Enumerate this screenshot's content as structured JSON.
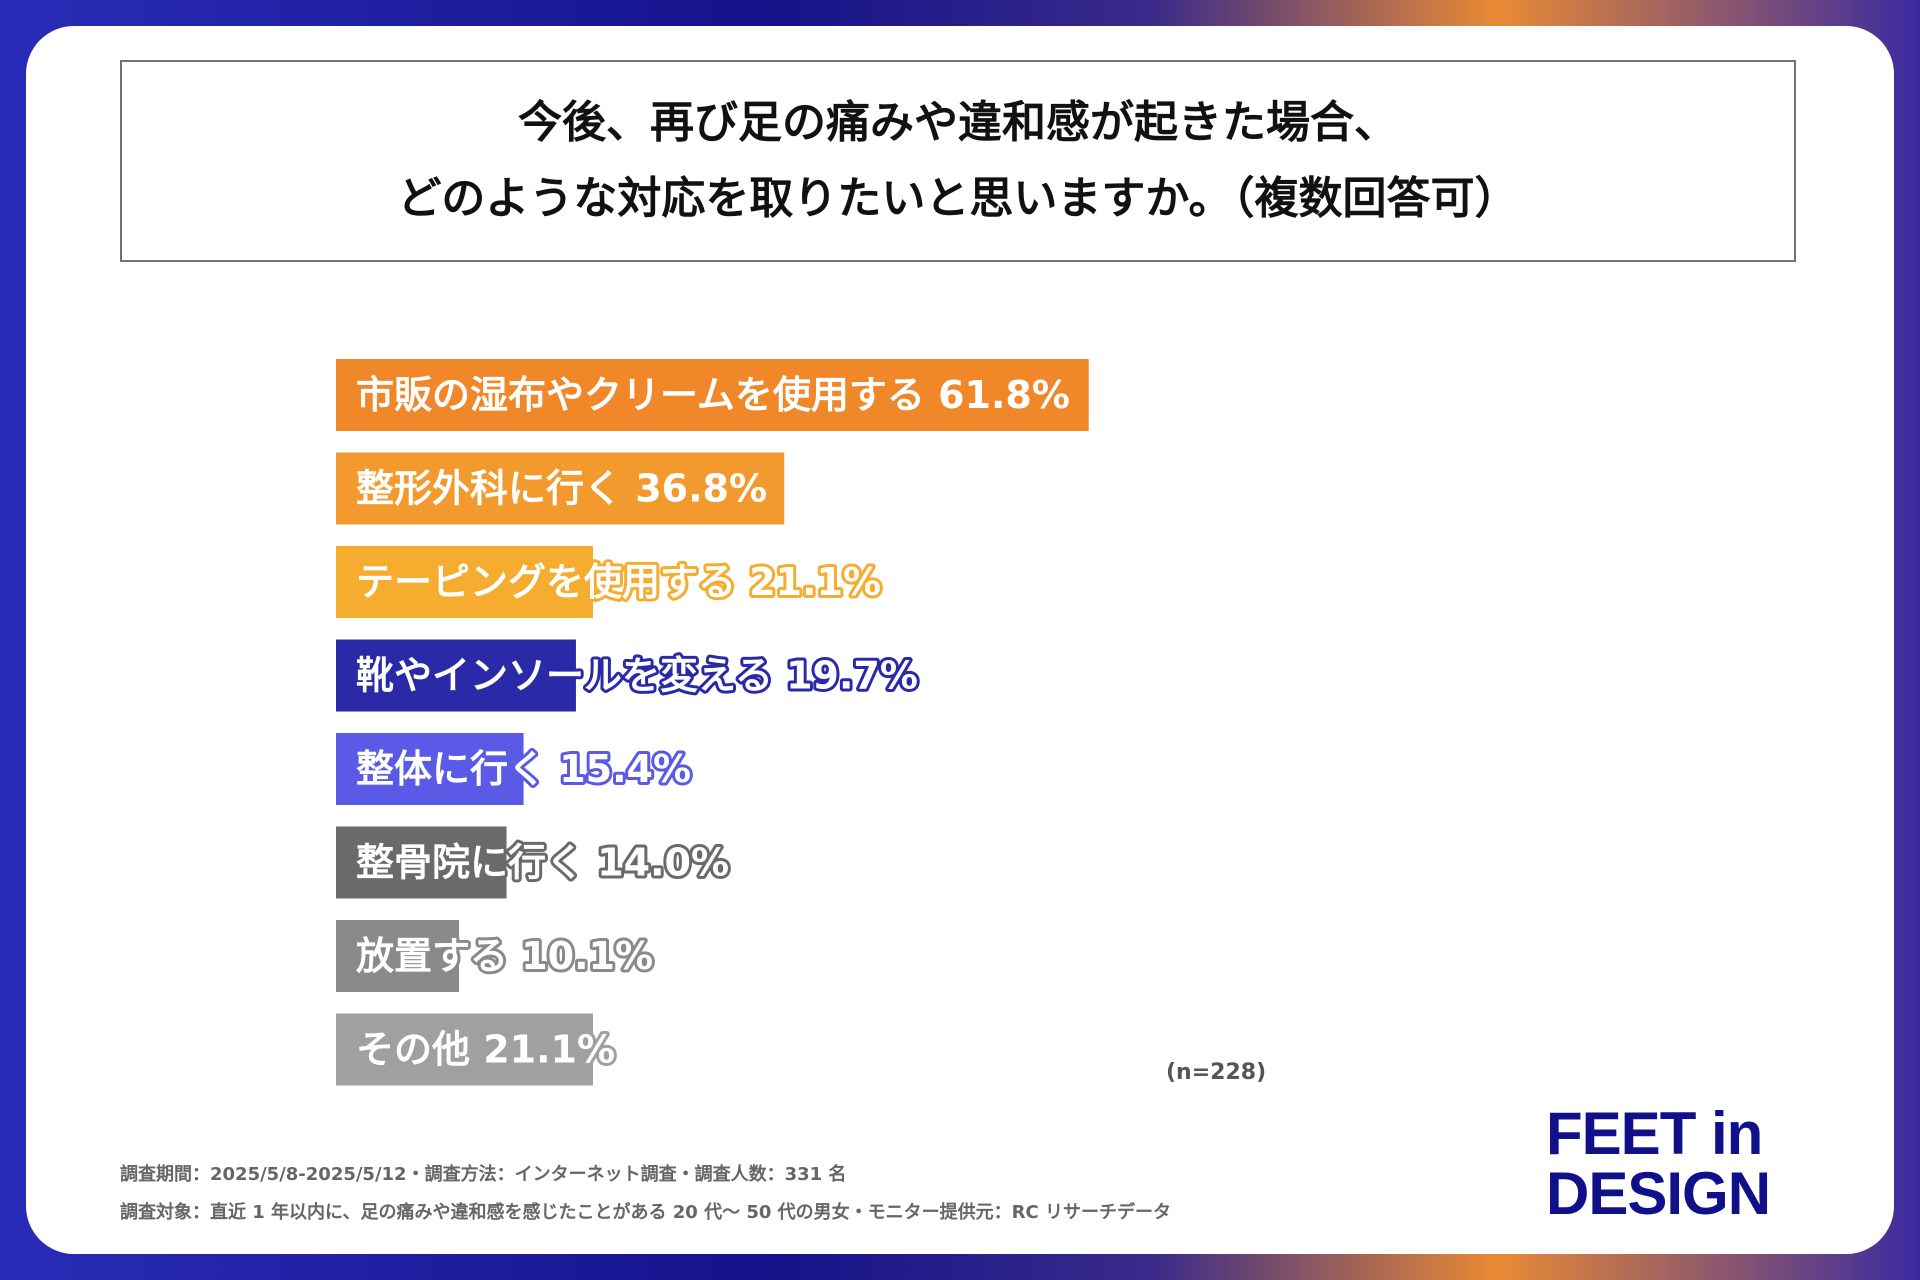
{
  "title": {
    "line1": "今後、再び足の痛みや違和感が起きた場合、",
    "line2": "どのような対応を取りたいと思いますか。（複数回答可）"
  },
  "chart_data": {
    "type": "bar",
    "orientation": "horizontal",
    "categories": [
      "市販の湿布やクリームを使用する",
      "整形外科に行く",
      "テーピングを使用する",
      "靴やインソールを変える",
      "整体に行く",
      "整骨院に行く",
      "放置する",
      "その他"
    ],
    "values": [
      61.8,
      36.8,
      21.1,
      19.7,
      15.4,
      14.0,
      10.1,
      21.1
    ],
    "value_labels": [
      "61.8%",
      "36.8%",
      "21.1%",
      "19.7%",
      "15.4%",
      "14.0%",
      "10.1%",
      "21.1%"
    ],
    "colors": [
      "#f0882a",
      "#f29a2e",
      "#f6ac2f",
      "#2a2aa8",
      "#5a5ae6",
      "#6a6a6a",
      "#8a8a8a",
      "#a0a0a0"
    ],
    "xlim": [
      0,
      100
    ],
    "grid": false
  },
  "note": "(n=228)",
  "footnotes": {
    "line1": "調査期間：2025/5/8-2025/5/12・調査方法：インターネット調査・調査人数：331 名",
    "line2": "調査対象：直近 1 年以内に、足の痛みや違和感を感じたことがある 20 代〜 50 代の男女・モニター提供元：RC リサーチデータ"
  },
  "logo": {
    "line1": "FEET in",
    "line2": "DESIGN"
  }
}
